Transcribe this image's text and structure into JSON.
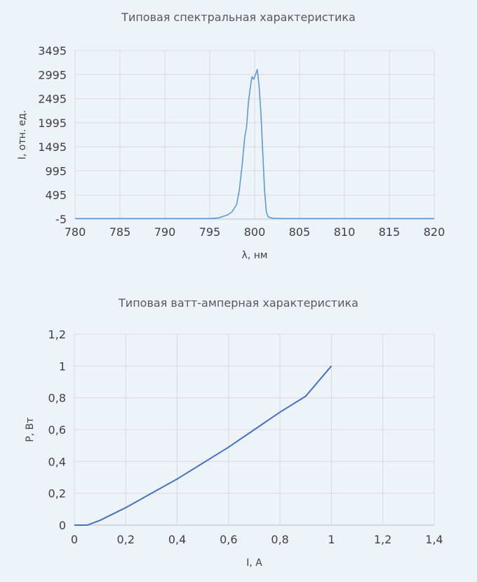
{
  "chart_data": [
    {
      "type": "line",
      "title": "Типовая спектральная характеристика",
      "xlabel": "λ, нм",
      "ylabel": "I, отн. ед.",
      "xlim": [
        780,
        820
      ],
      "ylim": [
        -5,
        3495
      ],
      "x_ticks": [
        "780",
        "785",
        "790",
        "795",
        "800",
        "805",
        "810",
        "815",
        "820"
      ],
      "y_ticks": [
        "3495",
        "2995",
        "2495",
        "1995",
        "1495",
        "995",
        "495",
        "-5"
      ],
      "grid": true,
      "color": "#5b9bd5",
      "series": [
        {
          "x": [
            780,
            785,
            790,
            795,
            796,
            797,
            797.5,
            798,
            798.3,
            798.6,
            798.9,
            799.1,
            799.3,
            799.5,
            799.7,
            799.9,
            800.1,
            800.3,
            800.5,
            800.7,
            800.9,
            801.1,
            801.3,
            801.5,
            802,
            803,
            805,
            810,
            815,
            820
          ],
          "y": [
            5,
            5,
            5,
            5,
            20,
            80,
            150,
            300,
            600,
            1100,
            1700,
            1900,
            2400,
            2700,
            2950,
            2900,
            3000,
            3100,
            2750,
            2200,
            1400,
            600,
            150,
            40,
            10,
            5,
            5,
            5,
            5,
            5
          ]
        }
      ]
    },
    {
      "type": "line",
      "title": "Типовая ватт-амперная характеристика",
      "xlabel": "I, А",
      "ylabel": "P, Вт",
      "xlim": [
        0,
        1.4
      ],
      "ylim": [
        0,
        1.2
      ],
      "x_ticks": [
        "0",
        "0,2",
        "0,4",
        "0,6",
        "0,8",
        "1",
        "1,2",
        "1,4"
      ],
      "y_ticks": [
        "1,2",
        "1",
        "0,8",
        "0,6",
        "0,4",
        "0,2",
        "0"
      ],
      "grid": true,
      "color": "#4472c4",
      "series": [
        {
          "x": [
            0,
            0.05,
            0.1,
            0.2,
            0.3,
            0.4,
            0.5,
            0.6,
            0.7,
            0.8,
            0.9,
            1.0
          ],
          "y": [
            0,
            0,
            0.03,
            0.11,
            0.2,
            0.29,
            0.39,
            0.49,
            0.6,
            0.71,
            0.81,
            1.0
          ]
        }
      ]
    }
  ]
}
